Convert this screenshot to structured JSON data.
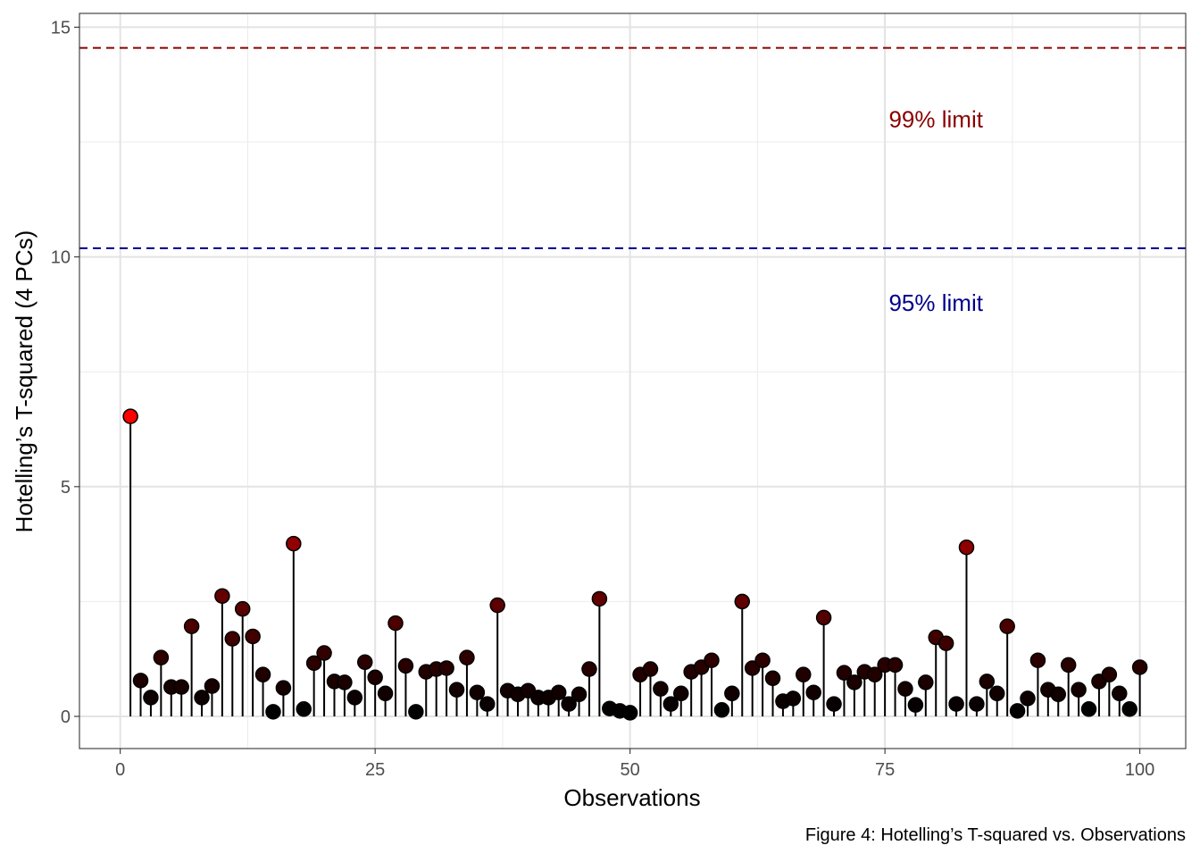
{
  "chart_data": {
    "type": "lollipop",
    "xlabel": "Observations",
    "ylabel": "Hotelling’s T-squared (4 PCs)",
    "caption": "Figure 4: Hotelling’s T-squared vs. Observations",
    "xlim": [
      -4,
      104.5
    ],
    "ylim": [
      -0.7,
      15.3
    ],
    "x_ticks": [
      0,
      25,
      50,
      75,
      100
    ],
    "x_tick_labels": [
      "0",
      "25",
      "50",
      "75",
      "100"
    ],
    "y_ticks": [
      0,
      5,
      10,
      15
    ],
    "y_tick_labels": [
      "0",
      "5",
      "10",
      "15"
    ],
    "grid": true,
    "color_scale": {
      "low": "#000000",
      "high": "#FF0000"
    },
    "x": [
      1,
      2,
      3,
      4,
      5,
      6,
      7,
      8,
      9,
      10,
      11,
      12,
      13,
      14,
      15,
      16,
      17,
      18,
      19,
      20,
      21,
      22,
      23,
      24,
      25,
      26,
      27,
      28,
      29,
      30,
      31,
      32,
      33,
      34,
      35,
      36,
      37,
      38,
      39,
      40,
      41,
      42,
      43,
      44,
      45,
      46,
      47,
      48,
      49,
      50,
      51,
      52,
      53,
      54,
      55,
      56,
      57,
      58,
      59,
      60,
      61,
      62,
      63,
      64,
      65,
      66,
      67,
      68,
      69,
      70,
      71,
      72,
      73,
      74,
      75,
      76,
      77,
      78,
      79,
      80,
      81,
      82,
      83,
      84,
      85,
      86,
      87,
      88,
      89,
      90,
      91,
      92,
      93,
      94,
      95,
      96,
      97,
      98,
      99,
      100
    ],
    "values": [
      6.53,
      0.78,
      0.41,
      1.28,
      0.64,
      0.64,
      1.96,
      0.41,
      0.66,
      2.62,
      1.69,
      2.34,
      1.74,
      0.91,
      0.1,
      0.62,
      3.76,
      0.16,
      1.16,
      1.38,
      0.76,
      0.74,
      0.41,
      1.18,
      0.85,
      0.5,
      2.03,
      1.1,
      0.1,
      0.97,
      1.03,
      1.05,
      0.58,
      1.28,
      0.52,
      0.27,
      2.42,
      0.56,
      0.48,
      0.56,
      0.41,
      0.41,
      0.52,
      0.27,
      0.48,
      1.03,
      2.56,
      0.17,
      0.12,
      0.08,
      0.91,
      1.03,
      0.6,
      0.27,
      0.5,
      0.97,
      1.07,
      1.22,
      0.14,
      0.5,
      2.5,
      1.05,
      1.22,
      0.83,
      0.33,
      0.39,
      0.91,
      0.52,
      2.15,
      0.27,
      0.95,
      0.74,
      0.97,
      0.91,
      1.12,
      1.12,
      0.6,
      0.25,
      0.74,
      1.72,
      1.59,
      0.27,
      3.68,
      0.27,
      0.76,
      0.5,
      1.96,
      0.12,
      0.39,
      1.22,
      0.58,
      0.48,
      1.12,
      0.58,
      0.16,
      0.76,
      0.91,
      0.5,
      0.16,
      1.07
    ],
    "reference_lines": [
      {
        "label": "99% limit",
        "value": 14.55,
        "color": "#8B0000",
        "style": "dashed",
        "label_x": 80,
        "label_y": 13
      },
      {
        "label": "95% limit",
        "value": 10.19,
        "color": "#00008B",
        "style": "dashed",
        "label_x": 80,
        "label_y": 9
      }
    ]
  }
}
